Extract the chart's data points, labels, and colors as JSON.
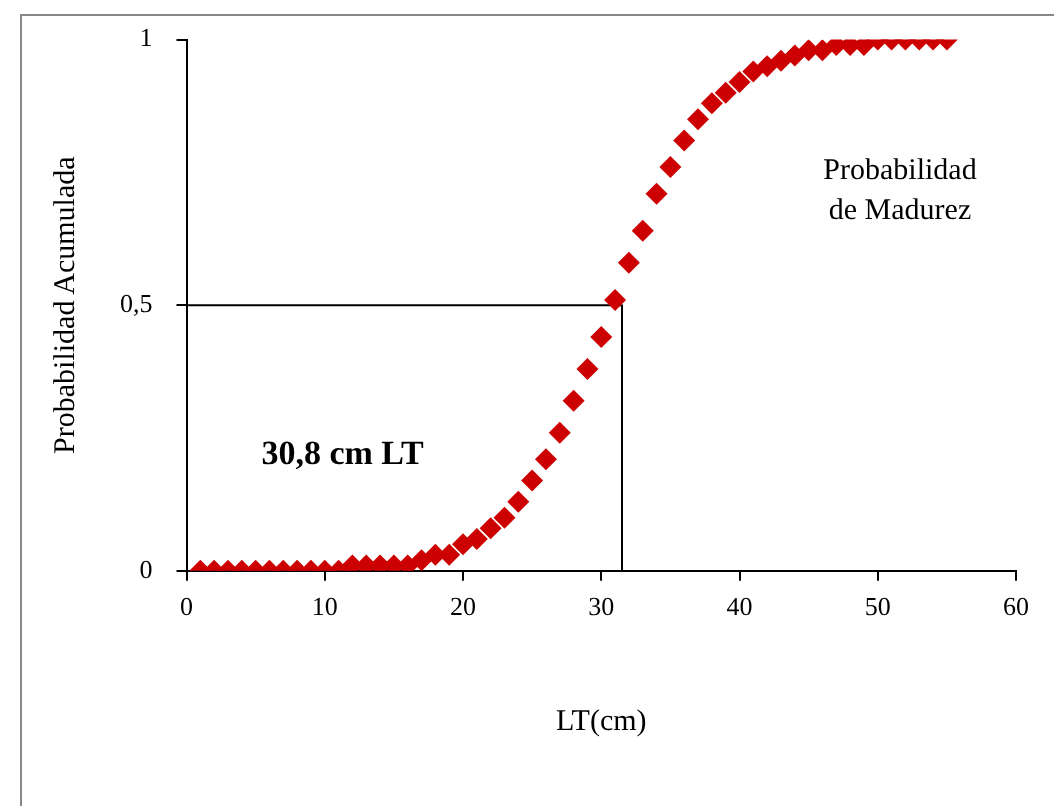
{
  "chart_data": {
    "type": "scatter",
    "xlabel": "LT(cm)",
    "ylabel": "Probabilidad Acumulada",
    "annotations": [
      "Probabilidad de Madurez",
      "30,8 cm LT"
    ],
    "xlim": [
      0,
      60
    ],
    "xticks": [
      0,
      10,
      20,
      30,
      40,
      50,
      60
    ],
    "ylim": [
      0,
      1
    ],
    "yticks": [
      0,
      {
        "value": 0.5,
        "label": "0,5"
      },
      1
    ],
    "grid": false,
    "legend": false,
    "marker": "diamond",
    "series": [
      {
        "color": "#cc0000",
        "x": [
          1,
          2,
          3,
          4,
          5,
          6,
          7,
          8,
          9,
          10,
          11,
          12,
          13,
          14,
          15,
          16,
          17,
          18,
          19,
          20,
          21,
          22,
          23,
          24,
          25,
          26,
          27,
          28,
          29,
          30,
          31,
          32,
          33,
          34,
          35,
          36,
          37,
          38,
          39,
          40,
          41,
          42,
          43,
          44,
          45,
          46,
          47,
          48,
          49,
          50,
          51,
          52,
          53,
          54,
          55
        ],
        "values": [
          0,
          0,
          0,
          0,
          0,
          0,
          0,
          0,
          0,
          0,
          0,
          0.01,
          0.01,
          0.01,
          0.01,
          0.01,
          0.02,
          0.03,
          0.03,
          0.05,
          0.06,
          0.08,
          0.1,
          0.13,
          0.17,
          0.21,
          0.26,
          0.32,
          0.38,
          0.44,
          0.51,
          0.58,
          0.64,
          0.71,
          0.76,
          0.81,
          0.85,
          0.88,
          0.9,
          0.92,
          0.94,
          0.95,
          0.96,
          0.97,
          0.98,
          0.98,
          0.99,
          0.99,
          0.99,
          1,
          1,
          1,
          1,
          1,
          1
        ]
      },
      {
        "type": "line",
        "color": "#000000",
        "marker": "none",
        "x": [
          0,
          31.5,
          31.5
        ],
        "values": [
          0.5,
          0.5,
          0
        ]
      }
    ]
  }
}
